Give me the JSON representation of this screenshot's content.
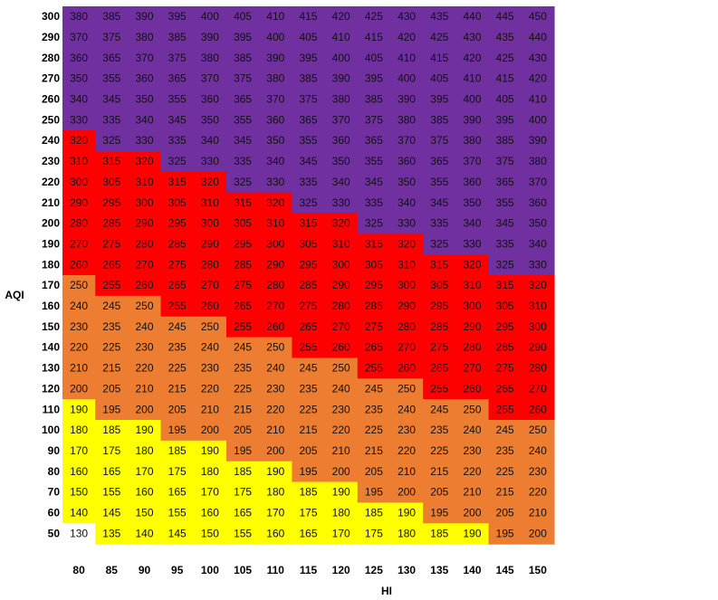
{
  "chart_data": {
    "type": "heatmap",
    "xlabel": "HI",
    "ylabel": "AQI",
    "x": [
      80,
      85,
      90,
      95,
      100,
      105,
      110,
      115,
      120,
      125,
      130,
      135,
      140,
      145,
      150
    ],
    "y": [
      300,
      290,
      280,
      270,
      260,
      250,
      240,
      230,
      220,
      210,
      200,
      190,
      180,
      170,
      160,
      150,
      140,
      130,
      120,
      110,
      100,
      90,
      80,
      70,
      60,
      50
    ],
    "colors": {
      "white": "#ffffff",
      "yellow": "#ffff00",
      "orange": "#ed7d31",
      "red": "#ff0000",
      "purple": "#7030a0"
    },
    "value_rule": "cell value = AQI + HI",
    "values": [
      [
        380,
        385,
        390,
        395,
        400,
        405,
        410,
        415,
        420,
        425,
        430,
        435,
        440,
        445,
        450
      ],
      [
        370,
        375,
        380,
        385,
        390,
        395,
        400,
        405,
        410,
        415,
        420,
        425,
        430,
        435,
        440
      ],
      [
        360,
        365,
        370,
        375,
        380,
        385,
        390,
        395,
        400,
        405,
        410,
        415,
        420,
        425,
        430
      ],
      [
        350,
        355,
        360,
        365,
        370,
        375,
        380,
        385,
        390,
        395,
        400,
        405,
        410,
        415,
        420
      ],
      [
        340,
        345,
        350,
        355,
        360,
        365,
        370,
        375,
        380,
        385,
        390,
        395,
        400,
        405,
        410
      ],
      [
        330,
        335,
        340,
        345,
        350,
        355,
        360,
        365,
        370,
        375,
        380,
        385,
        390,
        395,
        400
      ],
      [
        320,
        325,
        330,
        335,
        340,
        345,
        350,
        355,
        360,
        365,
        370,
        375,
        380,
        385,
        390
      ],
      [
        310,
        315,
        320,
        325,
        330,
        335,
        340,
        345,
        350,
        355,
        360,
        365,
        370,
        375,
        380
      ],
      [
        300,
        305,
        310,
        315,
        320,
        325,
        330,
        335,
        340,
        345,
        350,
        355,
        360,
        365,
        370
      ],
      [
        290,
        295,
        300,
        305,
        310,
        315,
        320,
        325,
        330,
        335,
        340,
        345,
        350,
        355,
        360
      ],
      [
        280,
        285,
        290,
        295,
        300,
        305,
        310,
        315,
        320,
        325,
        330,
        335,
        340,
        345,
        350
      ],
      [
        270,
        275,
        280,
        285,
        290,
        295,
        300,
        305,
        310,
        315,
        320,
        325,
        330,
        335,
        340
      ],
      [
        260,
        265,
        270,
        275,
        280,
        285,
        290,
        295,
        300,
        305,
        310,
        315,
        320,
        325,
        330
      ],
      [
        250,
        255,
        260,
        265,
        270,
        275,
        280,
        285,
        290,
        295,
        300,
        305,
        310,
        315,
        320
      ],
      [
        240,
        245,
        250,
        255,
        260,
        265,
        270,
        275,
        280,
        285,
        290,
        295,
        300,
        305,
        310
      ],
      [
        230,
        235,
        240,
        245,
        250,
        255,
        260,
        265,
        270,
        275,
        280,
        285,
        290,
        295,
        300
      ],
      [
        220,
        225,
        230,
        235,
        240,
        245,
        250,
        255,
        260,
        265,
        270,
        275,
        280,
        285,
        290
      ],
      [
        210,
        215,
        220,
        225,
        230,
        235,
        240,
        245,
        250,
        255,
        260,
        265,
        270,
        275,
        280
      ],
      [
        200,
        205,
        210,
        215,
        220,
        225,
        230,
        235,
        240,
        245,
        250,
        255,
        260,
        265,
        270
      ],
      [
        190,
        195,
        200,
        205,
        210,
        215,
        220,
        225,
        230,
        235,
        240,
        245,
        250,
        255,
        260
      ],
      [
        180,
        185,
        190,
        195,
        200,
        205,
        210,
        215,
        220,
        225,
        230,
        235,
        240,
        245,
        250
      ],
      [
        170,
        175,
        180,
        185,
        190,
        195,
        200,
        205,
        210,
        215,
        220,
        225,
        230,
        235,
        240
      ],
      [
        160,
        165,
        170,
        175,
        180,
        185,
        190,
        195,
        200,
        205,
        210,
        215,
        220,
        225,
        230
      ],
      [
        150,
        155,
        160,
        165,
        170,
        175,
        180,
        185,
        190,
        195,
        200,
        205,
        210,
        215,
        220
      ],
      [
        140,
        145,
        150,
        155,
        160,
        165,
        170,
        175,
        180,
        185,
        190,
        195,
        200,
        205,
        210
      ],
      [
        130,
        135,
        140,
        145,
        150,
        155,
        160,
        165,
        170,
        175,
        180,
        185,
        190,
        195,
        200
      ]
    ],
    "cell_colors": [
      [
        "purple",
        "purple",
        "purple",
        "purple",
        "purple",
        "purple",
        "purple",
        "purple",
        "purple",
        "purple",
        "purple",
        "purple",
        "purple",
        "purple",
        "purple"
      ],
      [
        "purple",
        "purple",
        "purple",
        "purple",
        "purple",
        "purple",
        "purple",
        "purple",
        "purple",
        "purple",
        "purple",
        "purple",
        "purple",
        "purple",
        "purple"
      ],
      [
        "purple",
        "purple",
        "purple",
        "purple",
        "purple",
        "purple",
        "purple",
        "purple",
        "purple",
        "purple",
        "purple",
        "purple",
        "purple",
        "purple",
        "purple"
      ],
      [
        "purple",
        "purple",
        "purple",
        "purple",
        "purple",
        "purple",
        "purple",
        "purple",
        "purple",
        "purple",
        "purple",
        "purple",
        "purple",
        "purple",
        "purple"
      ],
      [
        "purple",
        "purple",
        "purple",
        "purple",
        "purple",
        "purple",
        "purple",
        "purple",
        "purple",
        "purple",
        "purple",
        "purple",
        "purple",
        "purple",
        "purple"
      ],
      [
        "purple",
        "purple",
        "purple",
        "purple",
        "purple",
        "purple",
        "purple",
        "purple",
        "purple",
        "purple",
        "purple",
        "purple",
        "purple",
        "purple",
        "purple"
      ],
      [
        "red",
        "purple",
        "purple",
        "purple",
        "purple",
        "purple",
        "purple",
        "purple",
        "purple",
        "purple",
        "purple",
        "purple",
        "purple",
        "purple",
        "purple"
      ],
      [
        "red",
        "red",
        "red",
        "purple",
        "purple",
        "purple",
        "purple",
        "purple",
        "purple",
        "purple",
        "purple",
        "purple",
        "purple",
        "purple",
        "purple"
      ],
      [
        "red",
        "red",
        "red",
        "red",
        "red",
        "purple",
        "purple",
        "purple",
        "purple",
        "purple",
        "purple",
        "purple",
        "purple",
        "purple",
        "purple"
      ],
      [
        "red",
        "red",
        "red",
        "red",
        "red",
        "red",
        "red",
        "purple",
        "purple",
        "purple",
        "purple",
        "purple",
        "purple",
        "purple",
        "purple"
      ],
      [
        "red",
        "red",
        "red",
        "red",
        "red",
        "red",
        "red",
        "red",
        "red",
        "purple",
        "purple",
        "purple",
        "purple",
        "purple",
        "purple"
      ],
      [
        "red",
        "red",
        "red",
        "red",
        "red",
        "red",
        "red",
        "red",
        "red",
        "red",
        "red",
        "purple",
        "purple",
        "purple",
        "purple"
      ],
      [
        "red",
        "red",
        "red",
        "red",
        "red",
        "red",
        "red",
        "red",
        "red",
        "red",
        "red",
        "red",
        "red",
        "purple",
        "purple"
      ],
      [
        "orange",
        "red",
        "red",
        "red",
        "red",
        "red",
        "red",
        "red",
        "red",
        "red",
        "red",
        "red",
        "red",
        "red",
        "red"
      ],
      [
        "orange",
        "orange",
        "orange",
        "red",
        "red",
        "red",
        "red",
        "red",
        "red",
        "red",
        "red",
        "red",
        "red",
        "red",
        "red"
      ],
      [
        "orange",
        "orange",
        "orange",
        "orange",
        "orange",
        "red",
        "red",
        "red",
        "red",
        "red",
        "red",
        "red",
        "red",
        "red",
        "red"
      ],
      [
        "orange",
        "orange",
        "orange",
        "orange",
        "orange",
        "orange",
        "orange",
        "red",
        "red",
        "red",
        "red",
        "red",
        "red",
        "red",
        "red"
      ],
      [
        "orange",
        "orange",
        "orange",
        "orange",
        "orange",
        "orange",
        "orange",
        "orange",
        "orange",
        "red",
        "red",
        "red",
        "red",
        "red",
        "red"
      ],
      [
        "orange",
        "orange",
        "orange",
        "orange",
        "orange",
        "orange",
        "orange",
        "orange",
        "orange",
        "orange",
        "orange",
        "red",
        "red",
        "red",
        "red"
      ],
      [
        "yellow",
        "orange",
        "orange",
        "orange",
        "orange",
        "orange",
        "orange",
        "orange",
        "orange",
        "orange",
        "orange",
        "orange",
        "orange",
        "red",
        "red"
      ],
      [
        "yellow",
        "yellow",
        "yellow",
        "orange",
        "orange",
        "orange",
        "orange",
        "orange",
        "orange",
        "orange",
        "orange",
        "orange",
        "orange",
        "orange",
        "orange"
      ],
      [
        "yellow",
        "yellow",
        "yellow",
        "yellow",
        "yellow",
        "orange",
        "orange",
        "orange",
        "orange",
        "orange",
        "orange",
        "orange",
        "orange",
        "orange",
        "orange"
      ],
      [
        "yellow",
        "yellow",
        "yellow",
        "yellow",
        "yellow",
        "yellow",
        "yellow",
        "orange",
        "orange",
        "orange",
        "orange",
        "orange",
        "orange",
        "orange",
        "orange"
      ],
      [
        "yellow",
        "yellow",
        "yellow",
        "yellow",
        "yellow",
        "yellow",
        "yellow",
        "yellow",
        "yellow",
        "orange",
        "orange",
        "orange",
        "orange",
        "orange",
        "orange"
      ],
      [
        "yellow",
        "yellow",
        "yellow",
        "yellow",
        "yellow",
        "yellow",
        "yellow",
        "yellow",
        "yellow",
        "yellow",
        "yellow",
        "orange",
        "orange",
        "orange",
        "orange"
      ],
      [
        "white",
        "yellow",
        "yellow",
        "yellow",
        "yellow",
        "yellow",
        "yellow",
        "yellow",
        "yellow",
        "yellow",
        "yellow",
        "yellow",
        "yellow",
        "orange",
        "orange"
      ]
    ]
  }
}
